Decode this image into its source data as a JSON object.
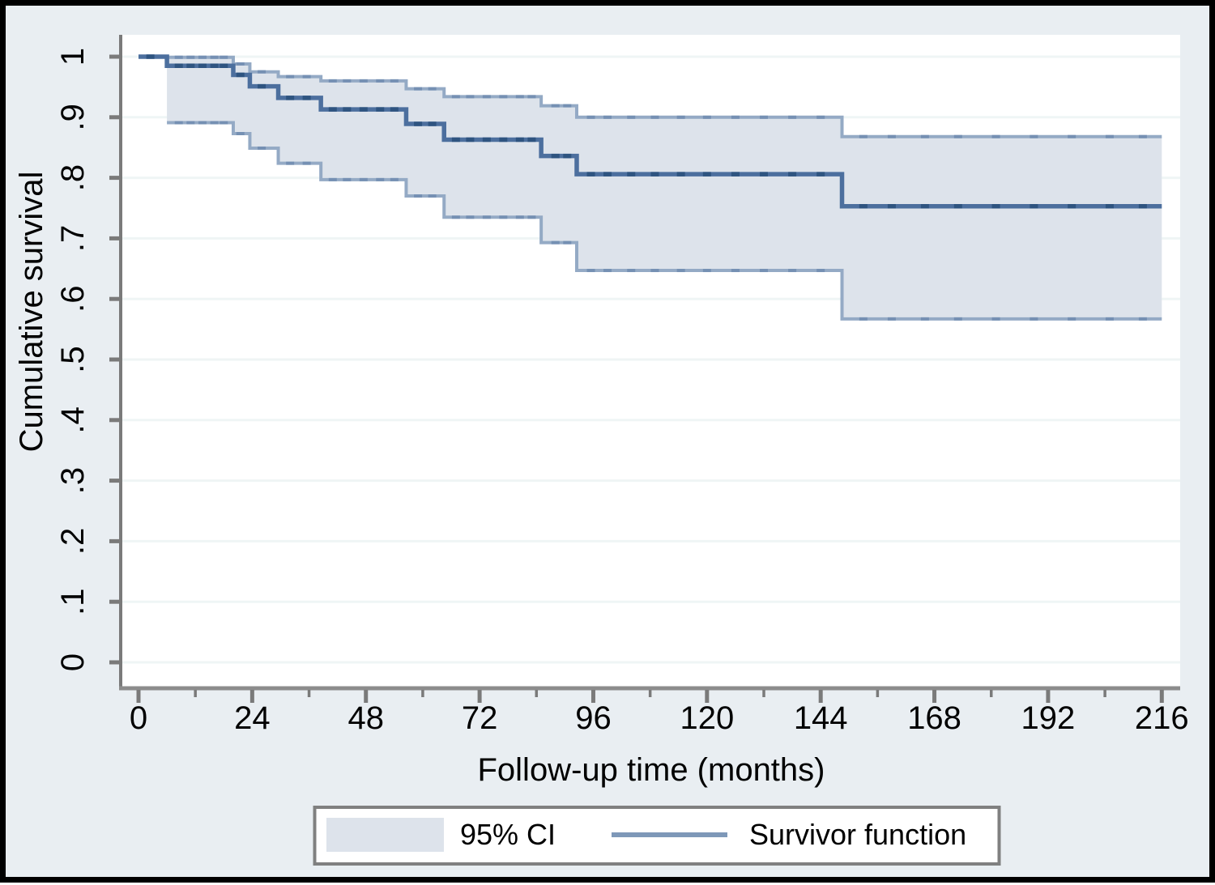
{
  "figure": {
    "kind": "Stata-style Kaplan-Meier survival plot",
    "outer_background": "#e9eef2",
    "plot_background": "#ffffff",
    "frame_color": "#000000",
    "grid_color": "#eff5f5",
    "axis_color": "#7a7a7a",
    "band_fill": "#dde3eb",
    "ci_line_color": "#94aac5",
    "ci_censor_color": "#7590b3",
    "survivor_line_color": "#4c6f9e",
    "survivor_censor_color": "#2e5480",
    "legend_border_color": "#808080",
    "legend_line_sample_color": "#7e98b8"
  },
  "chart_data": {
    "type": "line",
    "subtype": "kaplan-meier-step-with-confidence-band",
    "title": "",
    "xlabel": "Follow-up time (months)",
    "ylabel": "Cumulative survival",
    "xlim": [
      0,
      216
    ],
    "ylim": [
      0,
      1
    ],
    "grid": "horizontal",
    "x_ticks_major": [
      0,
      24,
      48,
      72,
      96,
      120,
      144,
      168,
      192,
      216
    ],
    "x_ticks_minor": [
      12,
      36,
      60,
      84,
      108,
      132,
      156,
      180,
      204
    ],
    "y_ticks": [
      {
        "v": 0,
        "label": "0"
      },
      {
        "v": 0.1,
        "label": ".1"
      },
      {
        "v": 0.2,
        "label": ".2"
      },
      {
        "v": 0.3,
        "label": ".3"
      },
      {
        "v": 0.4,
        "label": ".4"
      },
      {
        "v": 0.5,
        "label": ".5"
      },
      {
        "v": 0.6,
        "label": ".6"
      },
      {
        "v": 0.7,
        "label": ".7"
      },
      {
        "v": 0.8,
        "label": ".8"
      },
      {
        "v": 0.9,
        "label": ".9"
      },
      {
        "v": 1,
        "label": "1"
      }
    ],
    "series": [
      {
        "name": "Survivor function",
        "role": "survivor",
        "points": [
          [
            0,
            1.0
          ],
          [
            6,
            0.985
          ],
          [
            20,
            0.97
          ],
          [
            23.5,
            0.951
          ],
          [
            29.5,
            0.932
          ],
          [
            38.5,
            0.913
          ],
          [
            56.5,
            0.889
          ],
          [
            64.5,
            0.863
          ],
          [
            85,
            0.836
          ],
          [
            92.5,
            0.806
          ],
          [
            148.5,
            0.753
          ]
        ],
        "end": 216
      },
      {
        "name": "95% CI upper",
        "role": "ci-upper",
        "points": [
          [
            6,
            0.999
          ],
          [
            20,
            0.988
          ],
          [
            23.5,
            0.975
          ],
          [
            29.5,
            0.967
          ],
          [
            38.5,
            0.96
          ],
          [
            56.5,
            0.947
          ],
          [
            64.5,
            0.934
          ],
          [
            85,
            0.919
          ],
          [
            92.5,
            0.9
          ],
          [
            148.5,
            0.868
          ]
        ],
        "end": 216
      },
      {
        "name": "95% CI lower",
        "role": "ci-lower",
        "points": [
          [
            6,
            0.891
          ],
          [
            20,
            0.873
          ],
          [
            23.5,
            0.849
          ],
          [
            29.5,
            0.824
          ],
          [
            38.5,
            0.797
          ],
          [
            56.5,
            0.77
          ],
          [
            64.5,
            0.735
          ],
          [
            85,
            0.693
          ],
          [
            92.5,
            0.647
          ],
          [
            148.5,
            0.567
          ]
        ],
        "end": 216
      }
    ],
    "censor_times": [
      2.5,
      8.5,
      11,
      13.5,
      16,
      18,
      21.5,
      26,
      32,
      35.5,
      41,
      44,
      47.5,
      51,
      54,
      59,
      62,
      67,
      70,
      73.5,
      77,
      80.5,
      83,
      88,
      90.5,
      95.5,
      99,
      104,
      109,
      114.5,
      120,
      126,
      132,
      138,
      144,
      153,
      159,
      166,
      173,
      181,
      189,
      197,
      205,
      212
    ],
    "legend": {
      "position": "bottom",
      "entries": [
        {
          "label": "95% CI",
          "type": "area"
        },
        {
          "label": "Survivor function",
          "type": "line"
        }
      ]
    }
  }
}
